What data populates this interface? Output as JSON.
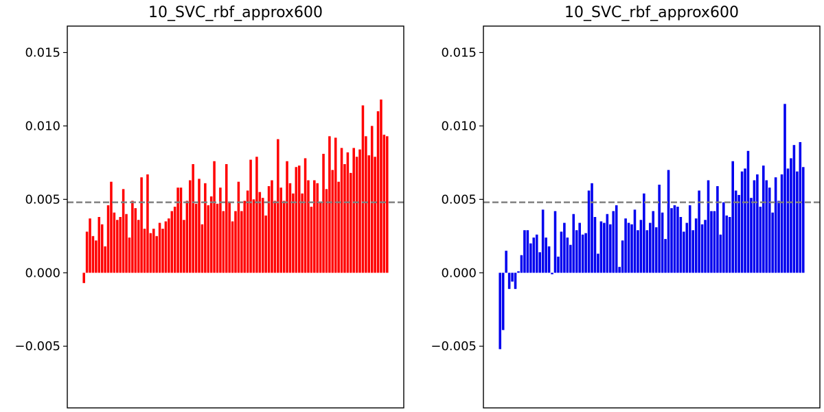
{
  "chart_data": [
    {
      "type": "bar",
      "title": "10_SVC_rbf_approx600",
      "xlabel": "",
      "ylabel": "",
      "ylim": [
        -0.0092,
        0.0168
      ],
      "ytick_values": [
        -0.005,
        0.0,
        0.005,
        0.01,
        0.015
      ],
      "yticks": [
        "−0.005",
        "0.000",
        "0.005",
        "0.010",
        "0.015"
      ],
      "reference_line": 0.0048,
      "reference_line_style": "dashed",
      "reference_line_color": "#808080",
      "bar_color": "#ff0000",
      "grid": false,
      "values": [
        -0.0007,
        0.0028,
        0.0037,
        0.0025,
        0.0022,
        0.0038,
        0.0033,
        0.0018,
        0.0046,
        0.0062,
        0.0041,
        0.0036,
        0.0038,
        0.0057,
        0.004,
        0.0024,
        0.0049,
        0.0044,
        0.0036,
        0.0065,
        0.003,
        0.0067,
        0.0027,
        0.003,
        0.0025,
        0.0034,
        0.003,
        0.0035,
        0.0037,
        0.0042,
        0.0045,
        0.0058,
        0.0058,
        0.0036,
        0.0049,
        0.0063,
        0.0074,
        0.0047,
        0.0064,
        0.0033,
        0.0061,
        0.0046,
        0.0052,
        0.0076,
        0.0047,
        0.0058,
        0.0042,
        0.0074,
        0.0048,
        0.0035,
        0.0042,
        0.0062,
        0.0042,
        0.0049,
        0.0056,
        0.0077,
        0.005,
        0.0079,
        0.0055,
        0.0051,
        0.0039,
        0.0059,
        0.0063,
        0.0049,
        0.0091,
        0.0058,
        0.0049,
        0.0076,
        0.0061,
        0.0054,
        0.0072,
        0.0073,
        0.0054,
        0.0078,
        0.0063,
        0.0045,
        0.0063,
        0.0061,
        0.0048,
        0.0081,
        0.0057,
        0.0093,
        0.007,
        0.0092,
        0.0062,
        0.0085,
        0.0074,
        0.0082,
        0.0068,
        0.0085,
        0.0079,
        0.0084,
        0.0114,
        0.0093,
        0.008,
        0.01,
        0.0079,
        0.011,
        0.0118,
        0.0094,
        0.0093
      ]
    },
    {
      "type": "bar",
      "title": "10_SVC_rbf_approx600",
      "xlabel": "",
      "ylabel": "",
      "ylim": [
        -0.0092,
        0.0168
      ],
      "ytick_values": [
        -0.005,
        0.0,
        0.005,
        0.01,
        0.015
      ],
      "yticks": [
        "−0.005",
        "0.000",
        "0.005",
        "0.010",
        "0.015"
      ],
      "reference_line": 0.0048,
      "reference_line_style": "dashed",
      "reference_line_color": "#808080",
      "bar_color": "#0000ee",
      "grid": false,
      "values": [
        -0.0052,
        -0.0039,
        0.0015,
        -0.0011,
        -0.0006,
        -0.0011,
        0.0001,
        0.0012,
        0.0029,
        0.0029,
        0.002,
        0.0024,
        0.0026,
        0.0014,
        0.0043,
        0.0024,
        0.0018,
        -0.0001,
        0.0042,
        0.0011,
        0.0028,
        0.0034,
        0.0024,
        0.0019,
        0.004,
        0.0029,
        0.0034,
        0.0026,
        0.0027,
        0.0056,
        0.0061,
        0.0038,
        0.0013,
        0.0035,
        0.0034,
        0.004,
        0.0033,
        0.0042,
        0.0046,
        0.0004,
        0.0022,
        0.0037,
        0.0034,
        0.0033,
        0.0043,
        0.0029,
        0.0036,
        0.0054,
        0.0029,
        0.0034,
        0.0042,
        0.0031,
        0.006,
        0.0041,
        0.0023,
        0.007,
        0.0044,
        0.0046,
        0.0045,
        0.0038,
        0.0028,
        0.0034,
        0.0046,
        0.0029,
        0.0037,
        0.0056,
        0.0033,
        0.0036,
        0.0063,
        0.0042,
        0.0042,
        0.0059,
        0.0026,
        0.0048,
        0.0039,
        0.0038,
        0.0076,
        0.0056,
        0.0053,
        0.0069,
        0.0071,
        0.0083,
        0.0051,
        0.0063,
        0.0067,
        0.0045,
        0.0073,
        0.0063,
        0.0058,
        0.0041,
        0.0065,
        0.0049,
        0.0067,
        0.0115,
        0.0071,
        0.0078,
        0.0087,
        0.0069,
        0.0089,
        0.0072
      ]
    }
  ]
}
